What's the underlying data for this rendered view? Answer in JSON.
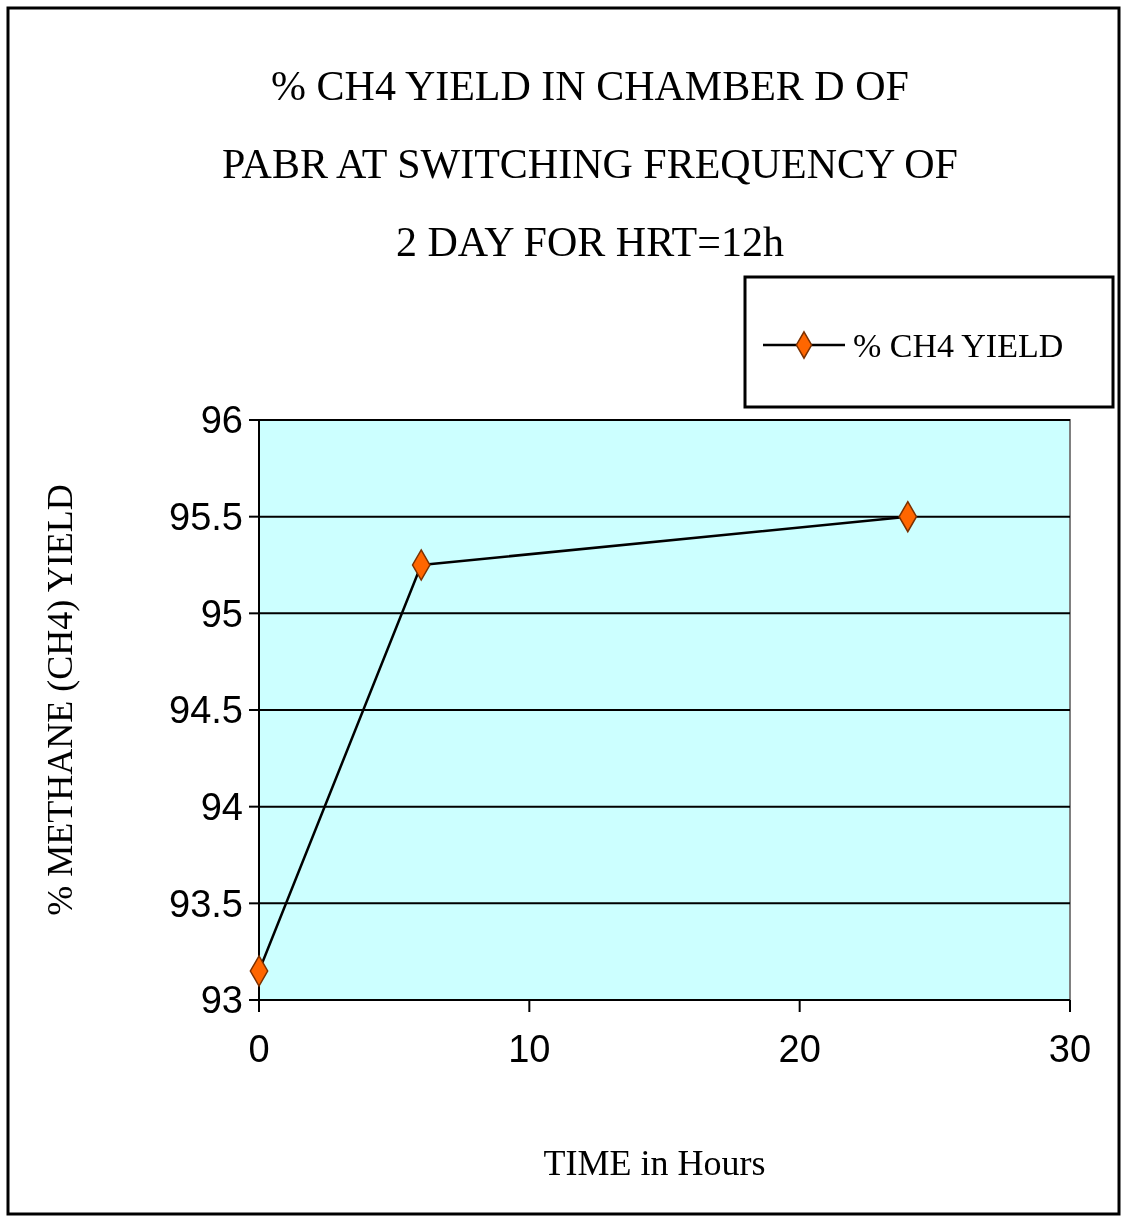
{
  "chart_data": {
    "type": "line",
    "title": "% CH4 YIELD IN CHAMBER D OF PABR AT SWITCHING FREQUENCY OF 2 DAY FOR HRT=12h",
    "xlabel": "TIME in Hours",
    "ylabel": "% METHANE (CH4) YIELD",
    "x": [
      0,
      6,
      24
    ],
    "series": [
      {
        "name": "% CH4 YIELD",
        "color": "#ff6600",
        "values": [
          93.15,
          95.25,
          95.5
        ]
      }
    ],
    "xlim": [
      0,
      30
    ],
    "xticks": [
      0,
      10,
      20,
      30
    ],
    "ylim": [
      93,
      96
    ],
    "yticks": [
      93,
      93.5,
      94,
      94.5,
      95,
      95.5,
      96
    ],
    "grid": "y",
    "legend": "top right",
    "marker": "diamond",
    "line_style": "solid"
  }
}
